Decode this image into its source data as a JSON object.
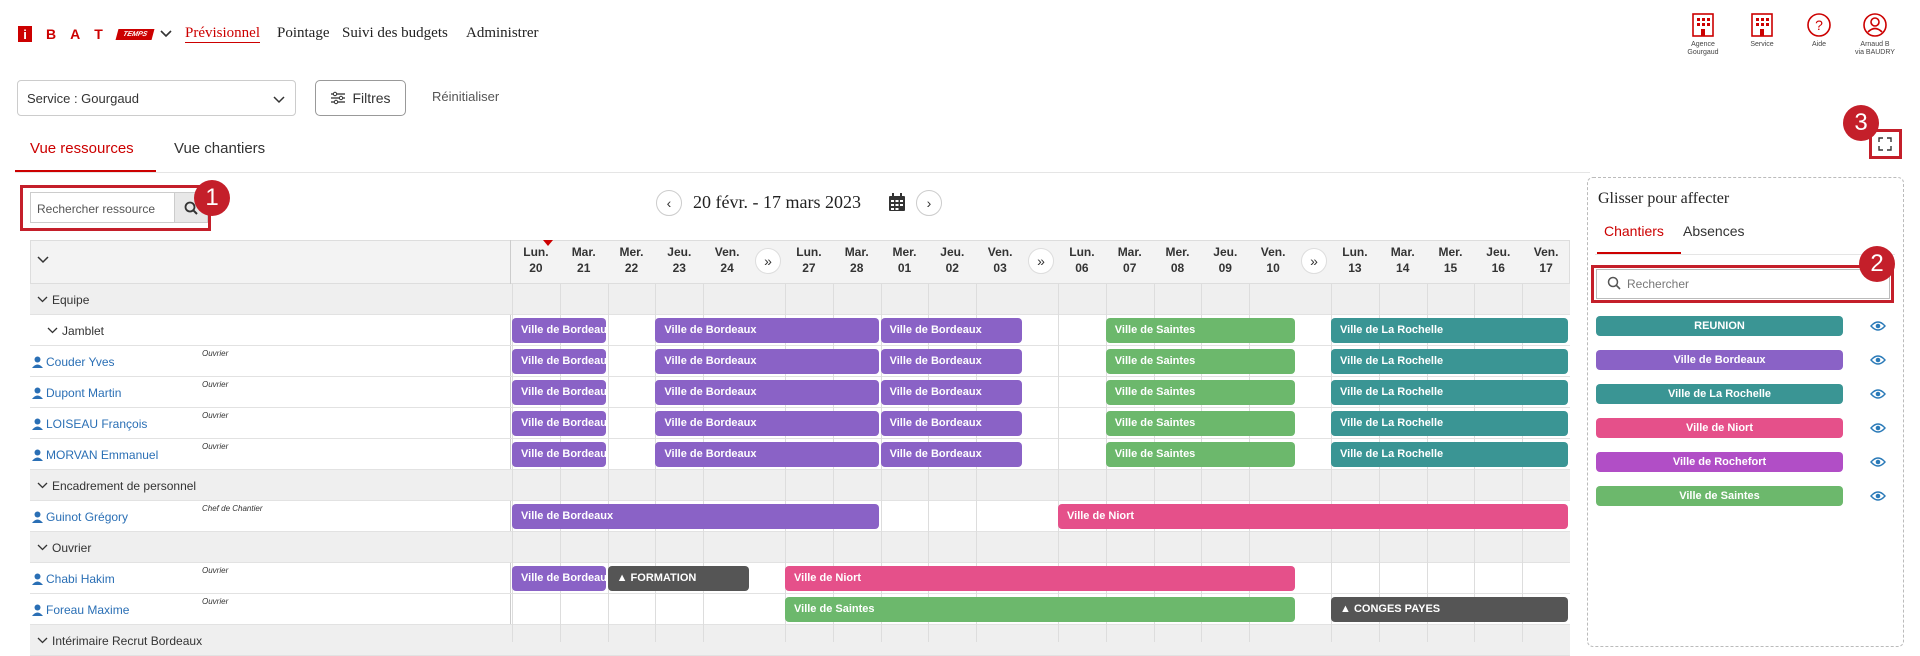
{
  "header": {
    "logo_letters": [
      "i",
      "B",
      "A",
      "T"
    ],
    "logo_badge": "TEMPS",
    "nav": [
      "Prévisionnel",
      "Pointage",
      "Suivi des budgets",
      "Administrer"
    ],
    "right_icons": [
      {
        "name": "building-icon",
        "label1": "Agence",
        "label2": "Gourgaud"
      },
      {
        "name": "building-icon",
        "label1": "Service",
        "label2": ""
      },
      {
        "name": "help-icon",
        "label1": "Aide",
        "label2": ""
      },
      {
        "name": "user-icon",
        "label1": "Arnaud B",
        "label2": "via BAUDRY"
      }
    ]
  },
  "toolbar": {
    "service": "Service : Gourgaud",
    "filters": "Filtres",
    "reset": "Réinitialiser"
  },
  "tabs": [
    "Vue ressources",
    "Vue chantiers"
  ],
  "search": {
    "placeholder": "Rechercher ressource"
  },
  "date_range": "20 févr. - 17 mars 2023",
  "days": [
    {
      "d": "Lun.",
      "n": "20"
    },
    {
      "d": "Mar.",
      "n": "21"
    },
    {
      "d": "Mer.",
      "n": "22"
    },
    {
      "d": "Jeu.",
      "n": "23"
    },
    {
      "d": "Ven.",
      "n": "24"
    },
    {
      "d": "Lun.",
      "n": "27"
    },
    {
      "d": "Mar.",
      "n": "28"
    },
    {
      "d": "Mer.",
      "n": "01"
    },
    {
      "d": "Jeu.",
      "n": "02"
    },
    {
      "d": "Ven.",
      "n": "03"
    },
    {
      "d": "Lun.",
      "n": "06"
    },
    {
      "d": "Mar.",
      "n": "07"
    },
    {
      "d": "Mer.",
      "n": "08"
    },
    {
      "d": "Jeu.",
      "n": "09"
    },
    {
      "d": "Ven.",
      "n": "10"
    },
    {
      "d": "Lun.",
      "n": "13"
    },
    {
      "d": "Mar.",
      "n": "14"
    },
    {
      "d": "Mer.",
      "n": "15"
    },
    {
      "d": "Jeu.",
      "n": "16"
    },
    {
      "d": "Ven.",
      "n": "17"
    }
  ],
  "skip_symbol": "»",
  "rows": [
    {
      "type": "group",
      "label": "Equipe"
    },
    {
      "type": "subgroup",
      "label": "Jamblet"
    },
    {
      "type": "res",
      "name": "Couder Yves",
      "role": "Ouvrier"
    },
    {
      "type": "res",
      "name": "Dupont Martin",
      "role": "Ouvrier"
    },
    {
      "type": "res",
      "name": "LOISEAU François",
      "role": "Ouvrier"
    },
    {
      "type": "res",
      "name": "MORVAN Emmanuel",
      "role": "Ouvrier"
    },
    {
      "type": "group",
      "label": "Encadrement de personnel"
    },
    {
      "type": "res",
      "name": "Guinot Grégory",
      "role": "Chef de Chantier"
    },
    {
      "type": "group",
      "label": "Ouvrier"
    },
    {
      "type": "res",
      "name": "Chabi Hakim",
      "role": "Ouvrier"
    },
    {
      "type": "res",
      "name": "Foreau Maxime",
      "role": "Ouvrier"
    },
    {
      "type": "group",
      "label": "Intérimaire Recrut Bordeaux"
    }
  ],
  "bar_labels": {
    "bordeaux": "Ville de Bordeaux",
    "saintes": "Ville de Saintes",
    "rochelle": "Ville de La Rochelle",
    "niort": "Ville de Niort",
    "formation": "FORMATION",
    "conges": "CONGES PAYES"
  },
  "colors": {
    "bordeaux": "#8a62c6",
    "saintes": "#6cb86c",
    "rochelle": "#3a9594",
    "niort": "#e5508a",
    "grey": "#555555",
    "rochefort": "#b14ec6",
    "accent": "#c41f2a"
  },
  "panel": {
    "title": "Glisser pour affecter",
    "tabs": [
      "Chantiers",
      "Absences"
    ],
    "search_placeholder": "Rechercher",
    "chips": [
      "REUNION",
      "Ville de Bordeaux",
      "Ville de La Rochelle",
      "Ville de Niort",
      "Ville de Rochefort",
      "Ville de Saintes"
    ]
  },
  "callouts": [
    "1",
    "2",
    "3"
  ]
}
